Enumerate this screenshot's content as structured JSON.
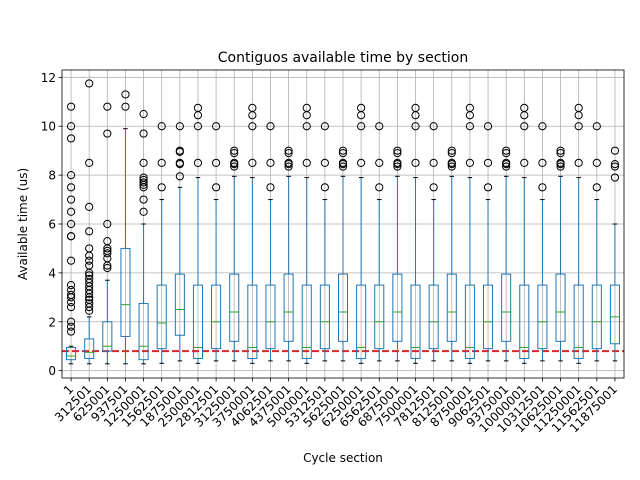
{
  "chart_data": {
    "type": "box",
    "title": "Contiguos available time by section",
    "xlabel": "Cycle section",
    "ylabel": "Available time (us)",
    "ylim": [
      -0.3,
      12.3
    ],
    "yticks": [
      0,
      2,
      4,
      6,
      8,
      10,
      12
    ],
    "grid": true,
    "reference_line": {
      "y": 0.8,
      "color": "#d62728",
      "style": "dashed"
    },
    "colors": {
      "box": "#1f77b4",
      "median": "#2ca02c",
      "outlier": "#000000",
      "grid": "#b0b0b0"
    },
    "categories": [
      "1",
      "312501",
      "625001",
      "937501",
      "1250001",
      "1562501",
      "1875001",
      "2500001",
      "2812501",
      "3125001",
      "3750001",
      "4062501",
      "4375001",
      "5000001",
      "5312501",
      "5625001",
      "6250001",
      "6562501",
      "6875001",
      "7500001",
      "7812501",
      "8125001",
      "8750001",
      "9062501",
      "9375001",
      "10000001",
      "10312501",
      "10625001",
      "11250001",
      "11562501",
      "11875001"
    ],
    "boxes": [
      {
        "whislo": 0.28,
        "q1": 0.45,
        "med": 0.6,
        "q3": 0.95,
        "whishi": 1.0,
        "fliers": [
          1.6,
          1.8,
          2.0,
          2.6,
          2.8,
          3.0,
          3.1,
          3.3,
          3.5,
          4.5,
          5.5,
          5.5,
          6.0,
          6.5,
          7.0,
          7.5,
          8.0,
          9.5,
          10.0,
          10.8
        ]
      },
      {
        "whislo": 0.28,
        "q1": 0.5,
        "med": 0.75,
        "q3": 1.3,
        "whishi": 2.2,
        "fliers": [
          2.45,
          2.6,
          2.75,
          2.9,
          3.0,
          3.15,
          3.3,
          3.45,
          3.6,
          3.75,
          3.9,
          4.0,
          4.3,
          4.5,
          4.7,
          5.0,
          5.7,
          6.7,
          8.5,
          11.75
        ]
      },
      {
        "whislo": 0.28,
        "q1": 0.8,
        "med": 1.0,
        "q3": 2.0,
        "whishi": 3.7,
        "fliers": [
          4.2,
          4.3,
          4.6,
          4.8,
          4.9,
          5.0,
          5.3,
          6.0,
          9.7,
          10.8
        ]
      },
      {
        "whislo": 0.28,
        "q1": 1.4,
        "med": 2.7,
        "q3": 5.0,
        "whishi": 9.9,
        "fliers": [
          10.8,
          11.3
        ]
      },
      {
        "whislo": 0.28,
        "q1": 0.45,
        "med": 1.0,
        "q3": 2.75,
        "whishi": 6.0,
        "fliers": [
          6.5,
          7.0,
          7.5,
          7.6,
          7.7,
          7.8,
          7.9,
          8.5,
          9.7,
          10.5
        ]
      },
      {
        "whislo": 0.3,
        "q1": 0.9,
        "med": 1.95,
        "q3": 3.5,
        "whishi": 7.0,
        "fliers": [
          7.5,
          8.5,
          10.0
        ]
      },
      {
        "whislo": 0.4,
        "q1": 1.45,
        "med": 2.5,
        "q3": 3.95,
        "whishi": 7.5,
        "fliers": [
          7.95,
          8.45,
          8.5,
          8.95,
          9.0,
          10.0
        ]
      },
      {
        "whislo": 0.3,
        "q1": 0.5,
        "med": 0.95,
        "q3": 3.5,
        "whishi": 7.9,
        "fliers": [
          8.5,
          10.0,
          10.45,
          10.75
        ]
      },
      {
        "whislo": 0.4,
        "q1": 0.9,
        "med": 2.0,
        "q3": 3.5,
        "whishi": 7.0,
        "fliers": [
          7.5,
          8.5,
          10.0
        ]
      },
      {
        "whislo": 0.4,
        "q1": 1.2,
        "med": 2.4,
        "q3": 3.95,
        "whishi": 7.95,
        "fliers": [
          8.35,
          8.45,
          8.5,
          8.9,
          9.0
        ]
      },
      {
        "whislo": 0.3,
        "q1": 0.5,
        "med": 0.95,
        "q3": 3.5,
        "whishi": 7.9,
        "fliers": [
          8.5,
          10.0,
          10.45,
          10.75
        ]
      },
      {
        "whislo": 0.4,
        "q1": 0.9,
        "med": 2.0,
        "q3": 3.5,
        "whishi": 7.0,
        "fliers": [
          7.5,
          8.5,
          10.0
        ]
      },
      {
        "whislo": 0.4,
        "q1": 1.2,
        "med": 2.4,
        "q3": 3.95,
        "whishi": 7.95,
        "fliers": [
          8.35,
          8.45,
          8.5,
          8.9,
          9.0
        ]
      },
      {
        "whislo": 0.3,
        "q1": 0.5,
        "med": 0.95,
        "q3": 3.5,
        "whishi": 7.9,
        "fliers": [
          8.5,
          10.0,
          10.45,
          10.75
        ]
      },
      {
        "whislo": 0.4,
        "q1": 0.9,
        "med": 2.0,
        "q3": 3.5,
        "whishi": 7.0,
        "fliers": [
          7.5,
          8.5,
          10.0
        ]
      },
      {
        "whislo": 0.4,
        "q1": 1.2,
        "med": 2.4,
        "q3": 3.95,
        "whishi": 7.95,
        "fliers": [
          8.35,
          8.45,
          8.5,
          8.9,
          9.0
        ]
      },
      {
        "whislo": 0.3,
        "q1": 0.5,
        "med": 0.95,
        "q3": 3.5,
        "whishi": 7.9,
        "fliers": [
          8.5,
          10.0,
          10.45,
          10.75
        ]
      },
      {
        "whislo": 0.4,
        "q1": 0.9,
        "med": 2.0,
        "q3": 3.5,
        "whishi": 7.0,
        "fliers": [
          7.5,
          8.5,
          10.0
        ]
      },
      {
        "whislo": 0.4,
        "q1": 1.2,
        "med": 2.4,
        "q3": 3.95,
        "whishi": 7.95,
        "fliers": [
          8.35,
          8.45,
          8.5,
          8.9,
          9.0
        ]
      },
      {
        "whislo": 0.3,
        "q1": 0.5,
        "med": 0.95,
        "q3": 3.5,
        "whishi": 7.9,
        "fliers": [
          8.5,
          10.0,
          10.45,
          10.75
        ]
      },
      {
        "whislo": 0.4,
        "q1": 0.9,
        "med": 2.0,
        "q3": 3.5,
        "whishi": 7.0,
        "fliers": [
          7.5,
          8.5,
          10.0
        ]
      },
      {
        "whislo": 0.4,
        "q1": 1.2,
        "med": 2.4,
        "q3": 3.95,
        "whishi": 7.95,
        "fliers": [
          8.35,
          8.45,
          8.5,
          8.9,
          9.0
        ]
      },
      {
        "whislo": 0.3,
        "q1": 0.5,
        "med": 0.95,
        "q3": 3.5,
        "whishi": 7.9,
        "fliers": [
          8.5,
          10.0,
          10.45,
          10.75
        ]
      },
      {
        "whislo": 0.4,
        "q1": 0.9,
        "med": 2.0,
        "q3": 3.5,
        "whishi": 7.0,
        "fliers": [
          7.5,
          8.5,
          10.0
        ]
      },
      {
        "whislo": 0.4,
        "q1": 1.2,
        "med": 2.4,
        "q3": 3.95,
        "whishi": 7.95,
        "fliers": [
          8.35,
          8.45,
          8.5,
          8.9,
          9.0
        ]
      },
      {
        "whislo": 0.3,
        "q1": 0.5,
        "med": 0.95,
        "q3": 3.5,
        "whishi": 7.9,
        "fliers": [
          8.5,
          10.0,
          10.45,
          10.75
        ]
      },
      {
        "whislo": 0.4,
        "q1": 0.9,
        "med": 2.0,
        "q3": 3.5,
        "whishi": 7.0,
        "fliers": [
          7.5,
          8.5,
          10.0
        ]
      },
      {
        "whislo": 0.4,
        "q1": 1.2,
        "med": 2.4,
        "q3": 3.95,
        "whishi": 7.95,
        "fliers": [
          8.35,
          8.45,
          8.5,
          8.9,
          9.0
        ]
      },
      {
        "whislo": 0.3,
        "q1": 0.5,
        "med": 0.95,
        "q3": 3.5,
        "whishi": 7.9,
        "fliers": [
          8.5,
          10.0,
          10.45,
          10.75
        ]
      },
      {
        "whislo": 0.4,
        "q1": 0.9,
        "med": 2.0,
        "q3": 3.5,
        "whishi": 7.0,
        "fliers": [
          7.5,
          8.5,
          10.0
        ]
      },
      {
        "whislo": 0.4,
        "q1": 1.1,
        "med": 2.2,
        "q3": 3.5,
        "whishi": 6.0,
        "fliers": [
          7.9,
          8.35,
          8.45,
          9.0
        ]
      }
    ]
  }
}
